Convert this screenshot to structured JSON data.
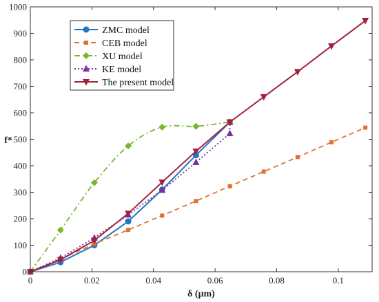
{
  "chart_data": {
    "type": "line",
    "title": "",
    "xlabel": "δ (μm)",
    "ylabel": "f*",
    "xlim": [
      0,
      0.111
    ],
    "ylim": [
      0,
      1000
    ],
    "x_ticks": [
      0,
      0.02,
      0.04,
      0.06,
      0.08,
      0.1
    ],
    "x_tick_labels": [
      "0",
      "0.02",
      "0.04",
      "0.06",
      "0.08",
      "0.1"
    ],
    "y_ticks": [
      0,
      100,
      200,
      300,
      400,
      500,
      600,
      700,
      800,
      900,
      1000
    ],
    "y_tick_labels": [
      "0",
      "100",
      "200",
      "300",
      "400",
      "500",
      "600",
      "700",
      "800",
      "900",
      "1000"
    ],
    "grid": false,
    "legend_position": "top-left",
    "series": [
      {
        "name": "ZMC model",
        "color": "#1f77c4",
        "line_style": "solid",
        "marker": "circle",
        "x": [
          0,
          0.0098,
          0.0208,
          0.0318,
          0.0428,
          0.0538,
          0.0648
        ],
        "y": [
          0,
          36,
          100,
          190,
          310,
          440,
          565
        ]
      },
      {
        "name": "CEB model",
        "color": "#e07030",
        "line_style": "dashed",
        "marker": "square",
        "x": [
          0,
          0.0098,
          0.0208,
          0.0318,
          0.0428,
          0.0538,
          0.0648,
          0.0758,
          0.0868,
          0.0978,
          0.1088
        ],
        "y": [
          0,
          48,
          105,
          158,
          212,
          267,
          323,
          378,
          433,
          489,
          544
        ]
      },
      {
        "name": "XU model",
        "color": "#77b82e",
        "line_style": "dash-dot",
        "marker": "diamond",
        "x": [
          0,
          0.0098,
          0.0208,
          0.0318,
          0.0428,
          0.0538,
          0.0648
        ],
        "y": [
          0,
          157,
          336,
          475,
          546,
          549,
          565
        ]
      },
      {
        "name": "KE model",
        "color": "#7b2fa0",
        "line_style": "dotted",
        "marker": "triangle-up",
        "x": [
          0,
          0.0098,
          0.0208,
          0.0318,
          0.0428,
          0.0538,
          0.0648,
          0.0648
        ],
        "y": [
          0,
          52,
          128,
          215,
          308,
          413,
          522,
          565
        ]
      },
      {
        "name": "The present model",
        "color": "#a3203c",
        "line_style": "solid",
        "marker": "triangle-down",
        "x": [
          0,
          0.0098,
          0.0208,
          0.0318,
          0.0428,
          0.0538,
          0.0648,
          0.0758,
          0.0868,
          0.0978,
          0.1088
        ],
        "y": [
          0,
          45,
          118,
          220,
          338,
          455,
          565,
          660,
          755,
          852,
          948
        ]
      }
    ]
  }
}
